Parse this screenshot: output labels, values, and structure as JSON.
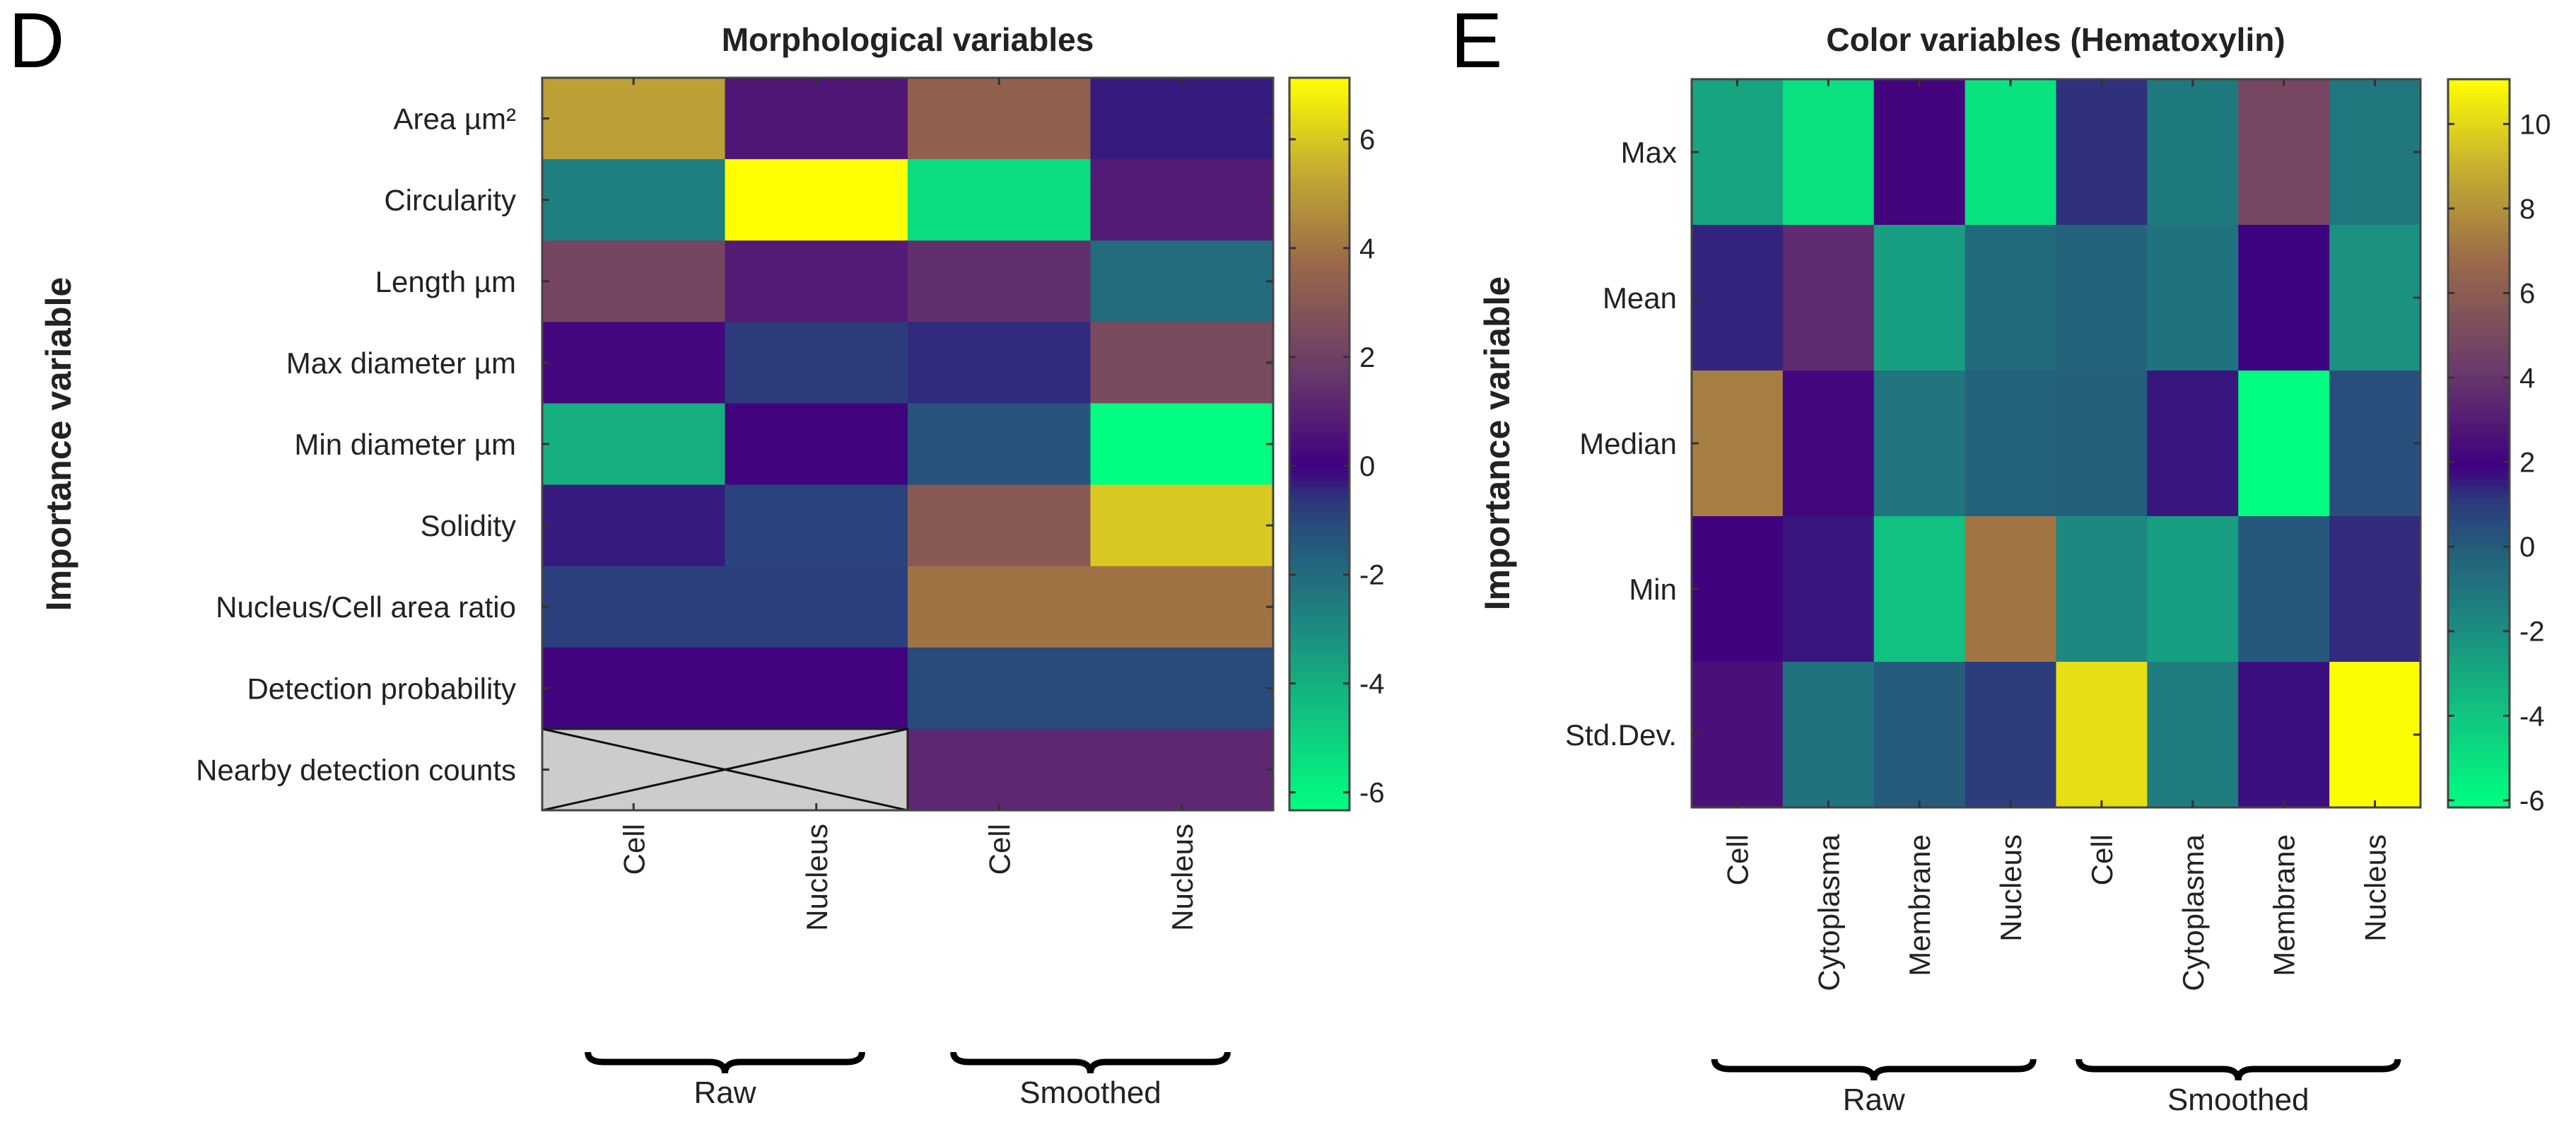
{
  "colormap": {
    "stops": [
      "#00ff80",
      "#10c880",
      "#1c8a80",
      "#24607c",
      "#2c3a7c",
      "#400080",
      "#6a3a6a",
      "#9a6a48",
      "#c8b030",
      "#ffff00"
    ],
    "positions": [
      0,
      0.12,
      0.25,
      0.35,
      0.42,
      0.47,
      0.6,
      0.75,
      0.88,
      1
    ],
    "missing_color": "#cccccc"
  },
  "chart_data": [
    {
      "type": "heatmap",
      "panel_label": "D",
      "title": "Morphological variables",
      "ylabel": "Importance variable",
      "rows": [
        "Area µm²",
        "Circularity",
        "Length µm",
        "Max diameter µm",
        "Min diameter µm",
        "Solidity",
        "Nucleus/Cell area ratio",
        "Detection probability",
        "Nearby detection counts"
      ],
      "columns": [
        "Cell",
        "Nucleus",
        "Cell",
        "Nucleus"
      ],
      "groups": [
        {
          "label": "Raw",
          "columns": [
            0,
            1
          ]
        },
        {
          "label": "Smoothed",
          "columns": [
            2,
            3
          ]
        }
      ],
      "values": [
        [
          5.1,
          0.7,
          3.4,
          -0.3
        ],
        [
          -2.6,
          7.1,
          -5.3,
          0.8
        ],
        [
          2.2,
          0.8,
          1.4,
          -2.0
        ],
        [
          0.2,
          -0.7,
          -0.5,
          2.4
        ],
        [
          -4.0,
          0.1,
          -1.3,
          -6.3
        ],
        [
          -0.3,
          -0.9,
          3.0,
          6.0
        ],
        [
          -0.8,
          -0.8,
          4.0,
          4.0
        ],
        [
          0.1,
          0.1,
          -1.1,
          -1.1
        ],
        [
          null,
          null,
          1.2,
          1.2
        ]
      ],
      "colorbar": {
        "range": [
          -6.33,
          7.13
        ],
        "ticks": [
          -6,
          -4,
          -2,
          0,
          2,
          4,
          6
        ]
      }
    },
    {
      "type": "heatmap",
      "panel_label": "E",
      "title": "Color variables (Hematoxylin)",
      "ylabel": "Importance variable",
      "rows": [
        "Max",
        "Mean",
        "Median",
        "Min",
        "Std.Dev."
      ],
      "columns": [
        "Cell",
        "Cytoplasma",
        "Membrane",
        "Nucleus",
        "Cell",
        "Cytoplasma",
        "Membrane",
        "Nucleus"
      ],
      "groups": [
        {
          "label": "Raw",
          "columns": [
            0,
            1,
            2,
            3
          ]
        },
        {
          "label": "Smoothed",
          "columns": [
            4,
            5,
            6,
            7
          ]
        }
      ],
      "values": [
        [
          -2.8,
          -5.0,
          2.1,
          -5.1,
          1.2,
          -1.2,
          4.8,
          -1.1
        ],
        [
          1.4,
          3.6,
          -2.6,
          -0.6,
          -0.3,
          -0.9,
          1.9,
          -2.1
        ],
        [
          7.4,
          2.2,
          -1.0,
          -0.2,
          -0.1,
          1.6,
          -6.1,
          0.4
        ],
        [
          2.0,
          1.6,
          -3.8,
          7.1,
          -1.8,
          -2.6,
          0.1,
          1.3
        ],
        [
          2.5,
          -0.9,
          0.0,
          1.0,
          10.2,
          -1.3,
          1.7,
          11.0
        ]
      ],
      "colorbar": {
        "range": [
          -6.17,
          11.06
        ],
        "ticks": [
          -6,
          -4,
          -2,
          0,
          2,
          4,
          6,
          8,
          10
        ]
      }
    }
  ]
}
